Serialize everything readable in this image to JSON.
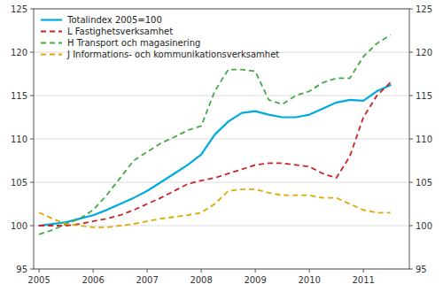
{
  "chart_data": {
    "type": "line",
    "x": [
      2005.0,
      2005.25,
      2005.5,
      2005.75,
      2006.0,
      2006.25,
      2006.5,
      2006.75,
      2007.0,
      2007.25,
      2007.5,
      2007.75,
      2008.0,
      2008.25,
      2008.5,
      2008.75,
      2009.0,
      2009.25,
      2009.5,
      2009.75,
      2010.0,
      2010.25,
      2010.5,
      2010.75,
      2011.0,
      2011.25,
      2011.5
    ],
    "xlim": [
      2004.9,
      2011.85
    ],
    "xticks": [
      2005,
      2006,
      2007,
      2008,
      2009,
      2010,
      2011
    ],
    "ylim": [
      95,
      125
    ],
    "yticks": [
      95,
      100,
      105,
      110,
      115,
      120,
      125
    ],
    "grid": true,
    "legend": "upper left",
    "series": [
      {
        "name": "Totalindex 2005=100",
        "color": "#00AADD",
        "line_style": "solid",
        "values": [
          100.0,
          100.2,
          100.4,
          100.8,
          101.2,
          101.8,
          102.5,
          103.2,
          104.0,
          105.0,
          106.0,
          107.0,
          108.2,
          110.5,
          112.0,
          113.0,
          113.2,
          112.8,
          112.5,
          112.5,
          112.8,
          113.5,
          114.2,
          114.5,
          114.4,
          115.5,
          116.2
        ]
      },
      {
        "name": "L Fastighetsverksamhet",
        "color": "#CC2222",
        "line_style": "dashed",
        "values": [
          100.0,
          100.0,
          100.0,
          100.2,
          100.5,
          100.8,
          101.2,
          101.8,
          102.5,
          103.2,
          104.0,
          104.8,
          105.2,
          105.5,
          106.0,
          106.5,
          107.0,
          107.2,
          107.2,
          107.0,
          106.8,
          106.0,
          105.5,
          108.0,
          112.5,
          115.0,
          116.5
        ]
      },
      {
        "name": "H Transport och magasinering",
        "color": "#44AA44",
        "line_style": "dashed",
        "values": [
          99.0,
          99.5,
          100.2,
          100.8,
          101.8,
          103.5,
          105.5,
          107.5,
          108.5,
          109.5,
          110.2,
          111.0,
          111.5,
          115.5,
          118.0,
          118.0,
          117.8,
          114.5,
          114.0,
          115.0,
          115.5,
          116.5,
          117.0,
          117.0,
          119.5,
          121.0,
          122.0
        ]
      },
      {
        "name": "J Informations- och kommunikationsverksamhet",
        "color": "#DDAA00",
        "line_style": "dashed",
        "values": [
          101.5,
          100.8,
          100.2,
          100.0,
          99.8,
          99.8,
          100.0,
          100.2,
          100.5,
          100.8,
          101.0,
          101.2,
          101.5,
          102.5,
          104.0,
          104.2,
          104.2,
          103.8,
          103.5,
          103.5,
          103.5,
          103.2,
          103.2,
          102.5,
          101.8,
          101.5,
          101.5
        ]
      }
    ]
  }
}
